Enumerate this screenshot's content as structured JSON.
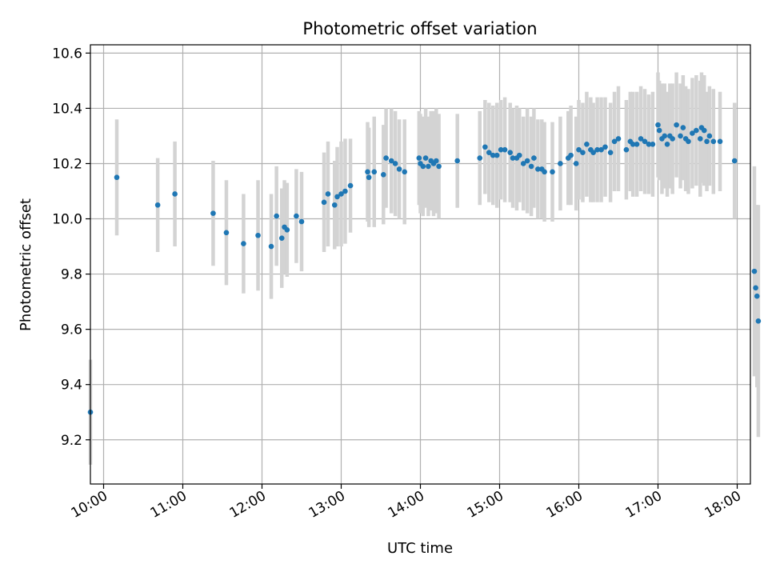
{
  "chart_data": {
    "type": "scatter",
    "title": "Photometric offset variation",
    "xlabel": "UTC time",
    "ylabel": "Photometric offset",
    "xlim": [
      "09:50",
      "18:10"
    ],
    "ylim": [
      9.04,
      10.63
    ],
    "x_ticks": [
      "10:00",
      "11:00",
      "12:00",
      "13:00",
      "14:00",
      "15:00",
      "16:00",
      "17:00",
      "18:00"
    ],
    "y_ticks": [
      "9.2",
      "9.4",
      "9.6",
      "9.8",
      "10.0",
      "10.2",
      "10.4",
      "10.6"
    ],
    "grid": true,
    "x_tick_rotation": 30,
    "colors": {
      "point": "#1f77b4",
      "errorbar": "#d3d3d3",
      "grid": "#b0b0b0"
    },
    "series": [
      {
        "points": [
          [
            "09:50",
            9.3,
            0.19
          ],
          [
            "10:10",
            10.15,
            0.21
          ],
          [
            "10:41",
            10.05,
            0.17
          ],
          [
            "10:54",
            10.09,
            0.19
          ],
          [
            "11:23",
            10.02,
            0.19
          ],
          [
            "11:33",
            9.95,
            0.19
          ],
          [
            "11:46",
            9.91,
            0.18
          ],
          [
            "11:57",
            9.94,
            0.2
          ],
          [
            "12:07",
            9.9,
            0.19
          ],
          [
            "12:11",
            10.01,
            0.18
          ],
          [
            "12:15",
            9.93,
            0.18
          ],
          [
            "12:17",
            9.97,
            0.17
          ],
          [
            "12:19",
            9.96,
            0.17
          ],
          [
            "12:26",
            10.01,
            0.17
          ],
          [
            "12:30",
            9.99,
            0.18
          ],
          [
            "12:47",
            10.06,
            0.18
          ],
          [
            "12:50",
            10.09,
            0.19
          ],
          [
            "12:55",
            10.05,
            0.16
          ],
          [
            "12:57",
            10.08,
            0.18
          ],
          [
            "13:00",
            10.09,
            0.19
          ],
          [
            "13:03",
            10.1,
            0.19
          ],
          [
            "13:07",
            10.12,
            0.17
          ],
          [
            "13:20",
            10.17,
            0.18
          ],
          [
            "13:21",
            10.15,
            0.18
          ],
          [
            "13:25",
            10.17,
            0.2
          ],
          [
            "13:32",
            10.16,
            0.18
          ],
          [
            "13:34",
            10.22,
            0.18
          ],
          [
            "13:38",
            10.21,
            0.19
          ],
          [
            "13:41",
            10.2,
            0.19
          ],
          [
            "13:44",
            10.18,
            0.18
          ],
          [
            "13:48",
            10.17,
            0.19
          ],
          [
            "13:59",
            10.22,
            0.17
          ],
          [
            "14:00",
            10.2,
            0.18
          ],
          [
            "14:02",
            10.19,
            0.18
          ],
          [
            "14:04",
            10.22,
            0.18
          ],
          [
            "14:06",
            10.19,
            0.18
          ],
          [
            "14:08",
            10.21,
            0.18
          ],
          [
            "14:10",
            10.2,
            0.19
          ],
          [
            "14:12",
            10.21,
            0.19
          ],
          [
            "14:14",
            10.19,
            0.19
          ],
          [
            "14:28",
            10.21,
            0.17
          ],
          [
            "14:45",
            10.22,
            0.17
          ],
          [
            "14:49",
            10.26,
            0.17
          ],
          [
            "14:52",
            10.24,
            0.18
          ],
          [
            "14:55",
            10.23,
            0.18
          ],
          [
            "14:58",
            10.23,
            0.19
          ],
          [
            "15:01",
            10.25,
            0.18
          ],
          [
            "15:04",
            10.25,
            0.19
          ],
          [
            "15:08",
            10.24,
            0.18
          ],
          [
            "15:10",
            10.22,
            0.18
          ],
          [
            "15:13",
            10.22,
            0.19
          ],
          [
            "15:15",
            10.23,
            0.17
          ],
          [
            "15:18",
            10.2,
            0.17
          ],
          [
            "15:21",
            10.21,
            0.19
          ],
          [
            "15:24",
            10.19,
            0.18
          ],
          [
            "15:26",
            10.22,
            0.18
          ],
          [
            "15:29",
            10.18,
            0.18
          ],
          [
            "15:32",
            10.18,
            0.18
          ],
          [
            "15:34",
            10.17,
            0.18
          ],
          [
            "15:40",
            10.17,
            0.18
          ],
          [
            "15:46",
            10.2,
            0.17
          ],
          [
            "15:52",
            10.22,
            0.17
          ],
          [
            "15:54",
            10.23,
            0.18
          ],
          [
            "15:58",
            10.2,
            0.17
          ],
          [
            "16:00",
            10.25,
            0.18
          ],
          [
            "16:03",
            10.24,
            0.18
          ],
          [
            "16:06",
            10.27,
            0.19
          ],
          [
            "16:09",
            10.25,
            0.19
          ],
          [
            "16:11",
            10.24,
            0.18
          ],
          [
            "16:14",
            10.25,
            0.19
          ],
          [
            "16:17",
            10.25,
            0.19
          ],
          [
            "16:20",
            10.26,
            0.18
          ],
          [
            "16:24",
            10.24,
            0.18
          ],
          [
            "16:27",
            10.28,
            0.18
          ],
          [
            "16:30",
            10.29,
            0.19
          ],
          [
            "16:36",
            10.25,
            0.18
          ],
          [
            "16:39",
            10.28,
            0.18
          ],
          [
            "16:41",
            10.27,
            0.19
          ],
          [
            "16:44",
            10.27,
            0.19
          ],
          [
            "16:47",
            10.29,
            0.19
          ],
          [
            "16:50",
            10.28,
            0.19
          ],
          [
            "16:53",
            10.27,
            0.18
          ],
          [
            "16:56",
            10.27,
            0.19
          ],
          [
            "17:00",
            10.34,
            0.19
          ],
          [
            "17:01",
            10.32,
            0.18
          ],
          [
            "17:03",
            10.29,
            0.2
          ],
          [
            "17:05",
            10.3,
            0.19
          ],
          [
            "17:07",
            10.27,
            0.19
          ],
          [
            "17:09",
            10.3,
            0.19
          ],
          [
            "17:11",
            10.29,
            0.2
          ],
          [
            "17:14",
            10.34,
            0.19
          ],
          [
            "17:17",
            10.3,
            0.19
          ],
          [
            "17:19",
            10.33,
            0.19
          ],
          [
            "17:21",
            10.29,
            0.19
          ],
          [
            "17:23",
            10.28,
            0.19
          ],
          [
            "17:26",
            10.31,
            0.2
          ],
          [
            "17:29",
            10.32,
            0.2
          ],
          [
            "17:32",
            10.29,
            0.21
          ],
          [
            "17:33",
            10.33,
            0.2
          ],
          [
            "17:35",
            10.32,
            0.2
          ],
          [
            "17:37",
            10.28,
            0.18
          ],
          [
            "17:39",
            10.3,
            0.18
          ],
          [
            "17:42",
            10.28,
            0.19
          ],
          [
            "17:47",
            10.28,
            0.18
          ],
          [
            "17:58",
            10.21,
            0.21
          ],
          [
            "18:13",
            9.81,
            0.38
          ],
          [
            "18:14",
            9.75,
            0.3
          ],
          [
            "18:15",
            9.72,
            0.33
          ],
          [
            "18:16",
            9.63,
            0.42
          ]
        ]
      }
    ]
  }
}
